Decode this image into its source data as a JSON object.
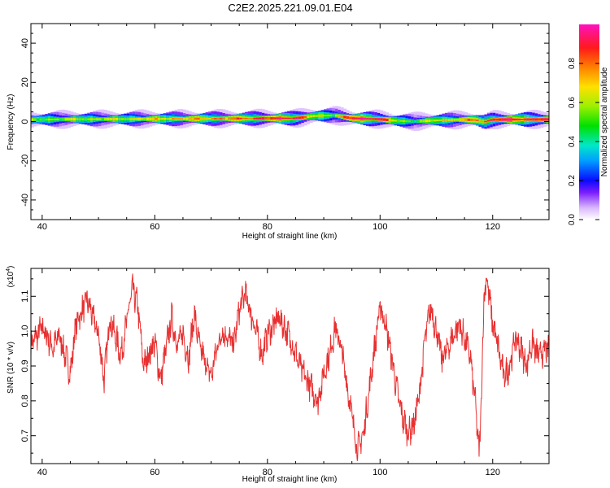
{
  "title": "C2E2.2025.221.09.01.E04",
  "chart_data": [
    {
      "type": "heatmap",
      "xlabel": "Height of straight line (km)",
      "ylabel": "Frequency (Hz)",
      "xlim": [
        38,
        130
      ],
      "ylim": [
        -50,
        50
      ],
      "x_ticks": [
        40,
        60,
        80,
        100,
        120
      ],
      "y_ticks": [
        -40,
        -20,
        0,
        20,
        40
      ],
      "colorbar": {
        "label": "Normalized spectral amplitude",
        "range": [
          0,
          1
        ],
        "ticks": [
          "0.0",
          "0.2",
          "0.4",
          "0.6",
          "0.8"
        ]
      },
      "band": {
        "description_values": "energy concentrated near 0 Hz across all heights",
        "x": [
          38,
          45,
          55,
          62,
          70,
          78,
          85,
          88,
          92,
          95,
          100,
          103,
          106,
          110,
          115,
          117,
          118.5,
          120,
          125,
          130
        ],
        "center_hz": [
          1,
          1.2,
          1.3,
          1.4,
          1.5,
          1.6,
          1.7,
          2.8,
          3.2,
          1.7,
          1.2,
          0.4,
          0.1,
          0.6,
          1.0,
          0.8,
          -0.2,
          1.0,
          1.1,
          1.1
        ],
        "peak_amplitude": [
          0.55,
          0.6,
          0.62,
          0.7,
          0.75,
          0.85,
          0.95,
          0.65,
          0.6,
          0.95,
          0.95,
          0.6,
          0.5,
          0.65,
          0.7,
          0.85,
          0.75,
          0.95,
          0.95,
          0.95
        ]
      }
    },
    {
      "type": "line",
      "xlabel": "Height of straight line (km)",
      "ylabel": "SNR (10 * v/v)",
      "y_multiplier": "(x10",
      "y_multiplier_exp": "4",
      "y_multiplier_close": ")",
      "xlim": [
        38,
        130
      ],
      "ylim": [
        0.62,
        1.18
      ],
      "x_ticks": [
        40,
        60,
        80,
        100,
        120
      ],
      "y_ticks": [
        0.7,
        0.8,
        0.9,
        1.0,
        1.1
      ],
      "series": [
        {
          "color": "#e83030",
          "x": [
            38,
            40,
            42,
            43,
            45,
            46,
            48,
            50,
            51,
            52,
            54,
            56,
            57,
            58,
            60,
            61,
            63,
            64,
            65,
            66,
            67,
            68,
            70,
            71,
            72,
            74,
            75,
            76,
            78,
            79,
            80,
            82,
            84,
            86,
            88,
            89,
            90,
            91,
            92,
            93,
            94,
            95,
            96,
            97,
            98,
            99,
            100,
            101,
            102,
            103,
            104,
            105,
            106,
            107,
            108,
            109,
            110,
            111,
            112,
            114,
            115,
            116,
            117,
            117.6,
            118,
            118.5,
            119,
            120,
            121,
            122,
            123,
            124,
            125,
            126,
            127,
            128,
            130
          ],
          "y": [
            0.96,
            1.01,
            0.95,
            0.99,
            0.88,
            1.02,
            1.09,
            0.99,
            0.86,
            1.04,
            0.93,
            1.12,
            1.07,
            0.9,
            0.97,
            0.86,
            1.04,
            0.96,
            0.99,
            0.92,
            1.05,
            0.95,
            0.87,
            0.95,
            1.0,
            0.96,
            1.06,
            1.11,
            1.0,
            0.93,
            0.99,
            1.04,
            0.98,
            0.89,
            0.83,
            0.8,
            0.88,
            0.93,
            1.01,
            0.96,
            0.86,
            0.76,
            0.66,
            0.7,
            0.82,
            0.95,
            1.07,
            1.02,
            0.93,
            0.83,
            0.75,
            0.71,
            0.73,
            0.82,
            0.98,
            1.07,
            1.0,
            0.92,
            0.95,
            1.02,
            0.98,
            0.93,
            0.78,
            0.64,
            0.82,
            1.12,
            1.15,
            1.02,
            0.95,
            0.87,
            0.9,
            0.98,
            0.95,
            0.9,
            0.97,
            0.93,
            0.95
          ]
        }
      ]
    }
  ]
}
